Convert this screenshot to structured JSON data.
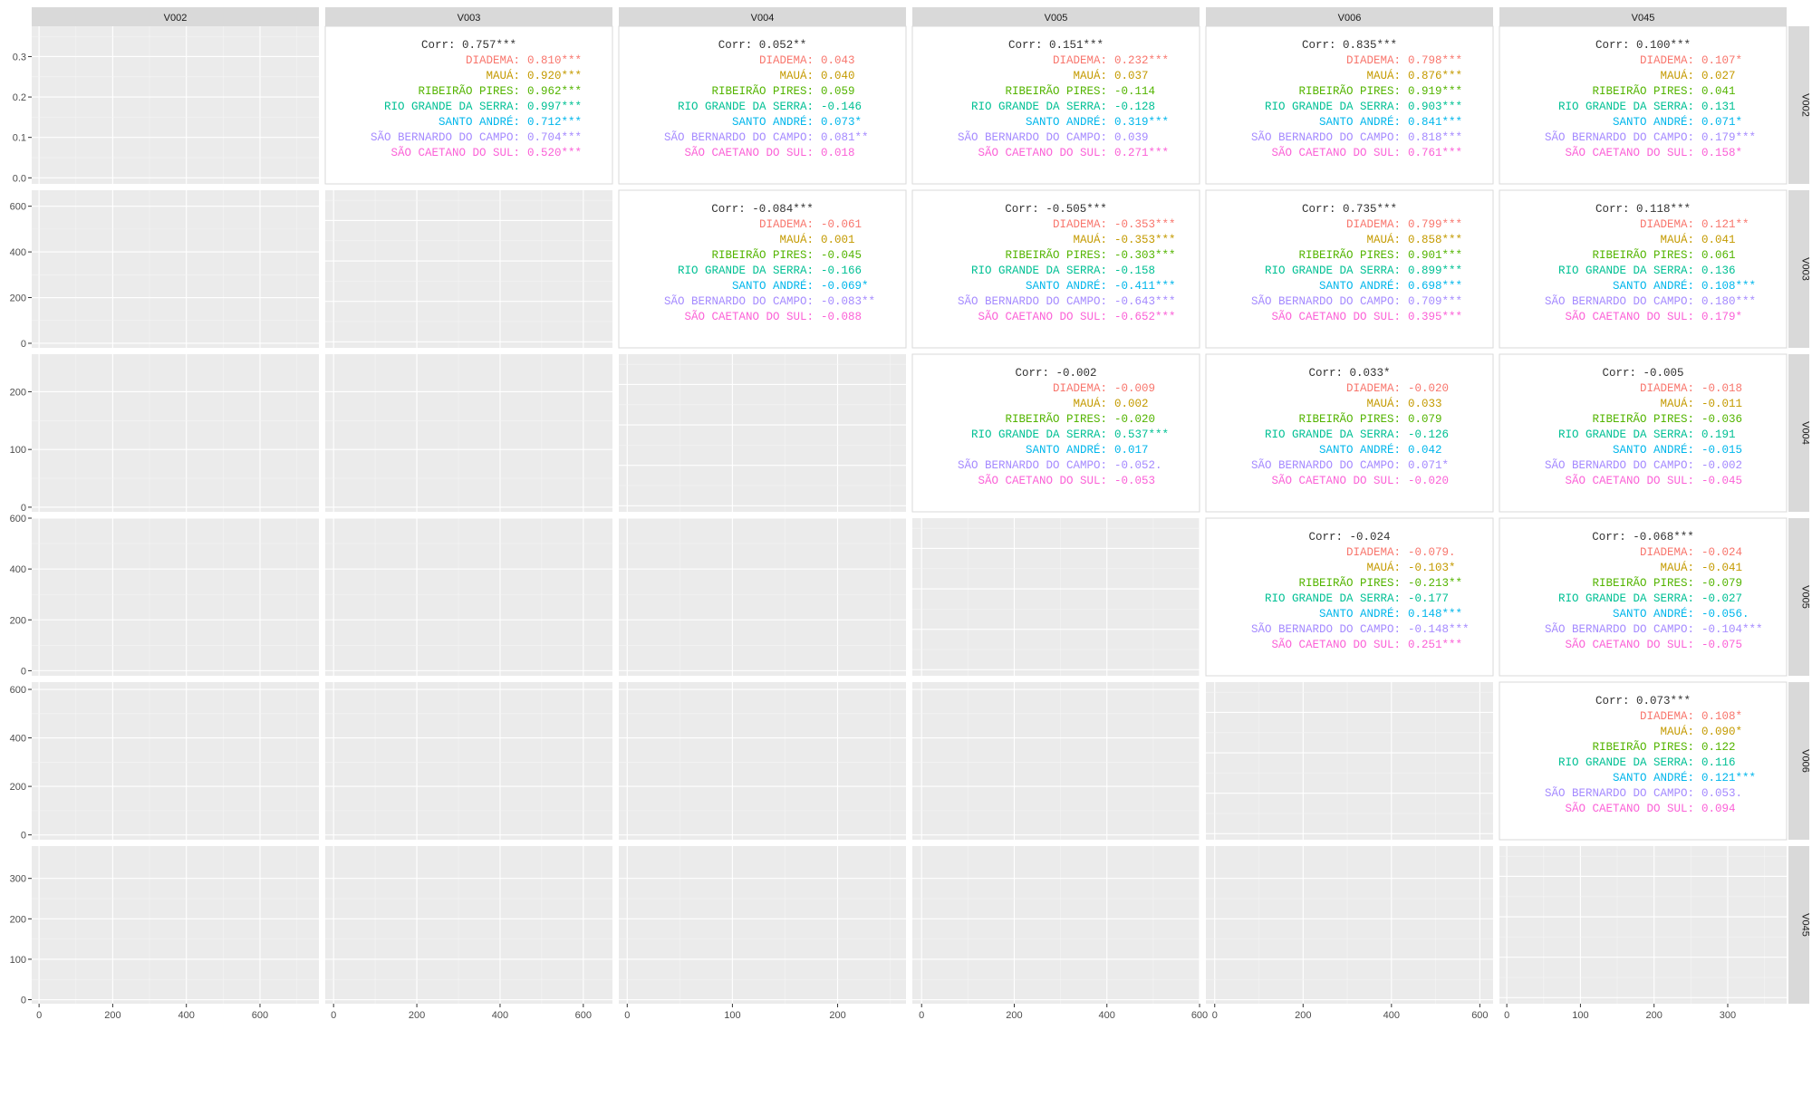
{
  "chart_data": {
    "type": "scatter",
    "variables": [
      "V002",
      "V003",
      "V004",
      "V005",
      "V006",
      "V045"
    ],
    "groups": [
      {
        "name": "DIADEMA",
        "color": "#F8766D"
      },
      {
        "name": "MAUÁ",
        "color": "#C49A00"
      },
      {
        "name": "RIBEIRÃO PIRES",
        "color": "#53B400"
      },
      {
        "name": "RIO GRANDE DA SERRA",
        "color": "#00C094"
      },
      {
        "name": "SANTO ANDRÉ",
        "color": "#00B6EB"
      },
      {
        "name": "SÃO BERNARDO DO CAMPO",
        "color": "#A58AFF"
      },
      {
        "name": "SÃO CAETANO DO SUL",
        "color": "#FB61D7"
      }
    ],
    "axes": {
      "V002": {
        "range": [
          -20,
          760
        ],
        "ticks": [
          0,
          200,
          400,
          600
        ]
      },
      "V003": {
        "range": [
          -20,
          670
        ],
        "ticks": [
          0,
          200,
          400,
          600
        ]
      },
      "V004": {
        "range": [
          -8,
          265
        ],
        "ticks": [
          0,
          100,
          200
        ]
      },
      "V005": {
        "range": [
          -20,
          600
        ],
        "ticks": [
          0,
          200,
          400,
          600
        ]
      },
      "V006": {
        "range": [
          -20,
          630
        ],
        "ticks": [
          0,
          200,
          400,
          600
        ]
      },
      "V045": {
        "range": [
          -10,
          380
        ],
        "ticks": [
          0,
          100,
          200,
          300
        ]
      }
    },
    "diagonal_density_ranges": {
      "V002": [
        0,
        0.35
      ],
      "V003": [
        0,
        0.35
      ],
      "V004": [
        0,
        0.35
      ],
      "V005": [
        0,
        0.35
      ],
      "V006": [
        0,
        0.35
      ],
      "V045": [
        0,
        0.35
      ]
    },
    "diagonal_y_ticks": {
      "V002": [
        "0.0",
        "0.1",
        "0.2",
        "0.3"
      ]
    },
    "correlations": [
      {
        "row": "V002",
        "col": "V003",
        "overall": "Corr: 0.757***",
        "groups": [
          "0.810***",
          "0.920***",
          "0.962***",
          "0.997***",
          "0.712***",
          "0.704***",
          "0.520***"
        ]
      },
      {
        "row": "V002",
        "col": "V004",
        "overall": "Corr: 0.052**",
        "groups": [
          "0.043",
          "0.040",
          "0.059",
          "-0.146",
          "0.073*",
          "0.081**",
          "0.018"
        ]
      },
      {
        "row": "V002",
        "col": "V005",
        "overall": "Corr: 0.151***",
        "groups": [
          "0.232***",
          "0.037",
          "-0.114",
          "-0.128",
          "0.319***",
          "0.039",
          "0.271***"
        ]
      },
      {
        "row": "V002",
        "col": "V006",
        "overall": "Corr: 0.835***",
        "groups": [
          "0.798***",
          "0.876***",
          "0.919***",
          "0.903***",
          "0.841***",
          "0.818***",
          "0.761***"
        ]
      },
      {
        "row": "V002",
        "col": "V045",
        "overall": "Corr: 0.100***",
        "groups": [
          "0.107*",
          "0.027",
          "0.041",
          "0.131",
          "0.071*",
          "0.179***",
          "0.158*"
        ]
      },
      {
        "row": "V003",
        "col": "V004",
        "overall": "Corr: -0.084***",
        "groups": [
          "-0.061",
          "0.001",
          "-0.045",
          "-0.166",
          "-0.069*",
          "-0.083**",
          "-0.088"
        ]
      },
      {
        "row": "V003",
        "col": "V005",
        "overall": "Corr: -0.505***",
        "groups": [
          "-0.353***",
          "-0.353***",
          "-0.303***",
          "-0.158",
          "-0.411***",
          "-0.643***",
          "-0.652***"
        ]
      },
      {
        "row": "V003",
        "col": "V006",
        "overall": "Corr: 0.735***",
        "groups": [
          "0.799***",
          "0.858***",
          "0.901***",
          "0.899***",
          "0.698***",
          "0.709***",
          "0.395***"
        ]
      },
      {
        "row": "V003",
        "col": "V045",
        "overall": "Corr: 0.118***",
        "groups": [
          "0.121**",
          "0.041",
          "0.061",
          "0.136",
          "0.108***",
          "0.180***",
          "0.179*"
        ]
      },
      {
        "row": "V004",
        "col": "V005",
        "overall": "Corr: -0.002",
        "groups": [
          "-0.009",
          "0.002",
          "-0.020",
          "0.537***",
          "0.017",
          "-0.052.",
          "-0.053"
        ]
      },
      {
        "row": "V004",
        "col": "V006",
        "overall": "Corr: 0.033*",
        "groups": [
          "-0.020",
          "0.033",
          "0.079",
          "-0.126",
          "0.042",
          "0.071*",
          "-0.020"
        ]
      },
      {
        "row": "V004",
        "col": "V045",
        "overall": "Corr: -0.005",
        "groups": [
          "-0.018",
          "-0.011",
          "-0.036",
          "0.191",
          "-0.015",
          "-0.002",
          "-0.045"
        ]
      },
      {
        "row": "V005",
        "col": "V006",
        "overall": "Corr: -0.024",
        "groups": [
          "-0.079.",
          "-0.103*",
          "-0.213**",
          "-0.177",
          "0.148***",
          "-0.148***",
          "0.251***"
        ]
      },
      {
        "row": "V005",
        "col": "V045",
        "overall": "Corr: -0.068***",
        "groups": [
          "-0.024",
          "-0.041",
          "-0.079",
          "-0.027",
          "-0.056.",
          "-0.104***",
          "-0.075"
        ]
      },
      {
        "row": "V006",
        "col": "V045",
        "overall": "Corr: 0.073***",
        "groups": [
          "0.108*",
          "0.090*",
          "0.122",
          "0.116",
          "0.121***",
          "0.053.",
          "0.094"
        ]
      }
    ],
    "grid": true,
    "legend": "none"
  }
}
